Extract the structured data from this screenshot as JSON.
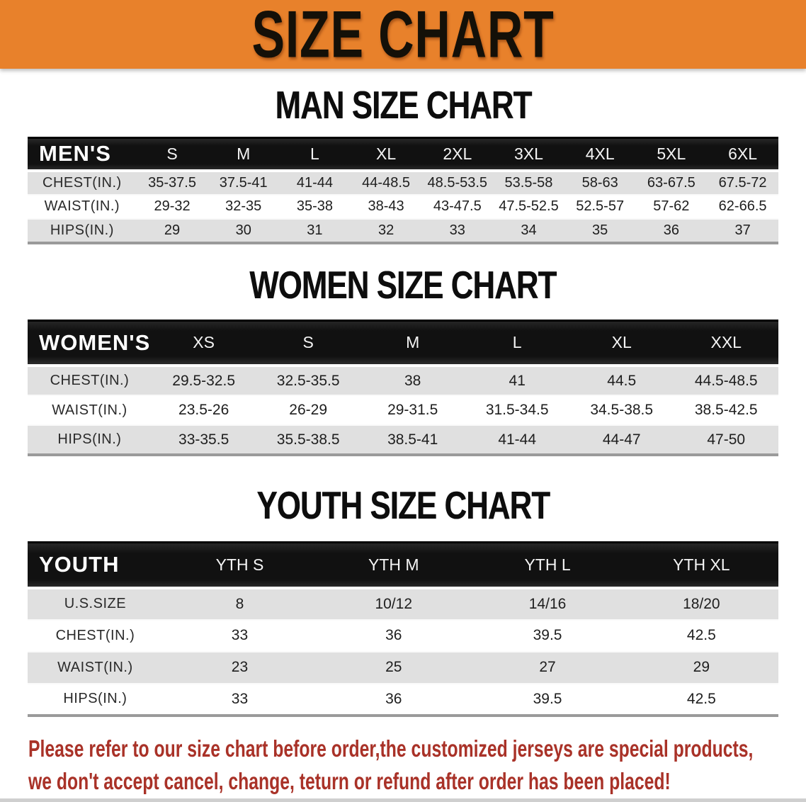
{
  "banner": {
    "title": "SIZE CHART",
    "bg_color": "#e8812b"
  },
  "colors": {
    "table_header_bg": "#161616",
    "stripe_gray": "#e0e0e0",
    "disclaimer_red": "#a93228"
  },
  "sections": [
    {
      "title": "MAN SIZE CHART",
      "header_label": "MEN'S",
      "columns": [
        "S",
        "M",
        "L",
        "XL",
        "2XL",
        "3XL",
        "4XL",
        "5XL",
        "6XL"
      ],
      "rows": [
        {
          "label": "CHEST(IN.)",
          "values": [
            "35-37.5",
            "37.5-41",
            "41-44",
            "44-48.5",
            "48.5-53.5",
            "53.5-58",
            "58-63",
            "63-67.5",
            "67.5-72"
          ]
        },
        {
          "label": "WAIST(IN.)",
          "values": [
            "29-32",
            "32-35",
            "35-38",
            "38-43",
            "43-47.5",
            "47.5-52.5",
            "52.5-57",
            "57-62",
            "62-66.5"
          ]
        },
        {
          "label": "HIPS(IN.)",
          "values": [
            "29",
            "30",
            "31",
            "32",
            "33",
            "34",
            "35",
            "36",
            "37"
          ]
        }
      ]
    },
    {
      "title": "WOMEN SIZE CHART",
      "header_label": "WOMEN'S",
      "columns": [
        "XS",
        "S",
        "M",
        "L",
        "XL",
        "XXL"
      ],
      "rows": [
        {
          "label": "CHEST(IN.)",
          "values": [
            "29.5-32.5",
            "32.5-35.5",
            "38",
            "41",
            "44.5",
            "44.5-48.5"
          ]
        },
        {
          "label": "WAIST(IN.)",
          "values": [
            "23.5-26",
            "26-29",
            "29-31.5",
            "31.5-34.5",
            "34.5-38.5",
            "38.5-42.5"
          ]
        },
        {
          "label": "HIPS(IN.)",
          "values": [
            "33-35.5",
            "35.5-38.5",
            "38.5-41",
            "41-44",
            "44-47",
            "47-50"
          ]
        }
      ]
    },
    {
      "title": "YOUTH SIZE CHART",
      "header_label": "YOUTH",
      "columns": [
        "YTH S",
        "YTH M",
        "YTH L",
        "YTH XL"
      ],
      "rows": [
        {
          "label": "U.S.SIZE",
          "values": [
            "8",
            "10/12",
            "14/16",
            "18/20"
          ]
        },
        {
          "label": "CHEST(IN.)",
          "values": [
            "33",
            "36",
            "39.5",
            "42.5"
          ]
        },
        {
          "label": "WAIST(IN.)",
          "values": [
            "23",
            "25",
            "27",
            "29"
          ]
        },
        {
          "label": "HIPS(IN.)",
          "values": [
            "33",
            "36",
            "39.5",
            "42.5"
          ]
        }
      ]
    }
  ],
  "disclaimer": {
    "line1": "Please refer to our size chart before order,the customized jerseys are special products,",
    "line2": "we don't accept cancel, change, teturn or refund after order has been placed!"
  }
}
